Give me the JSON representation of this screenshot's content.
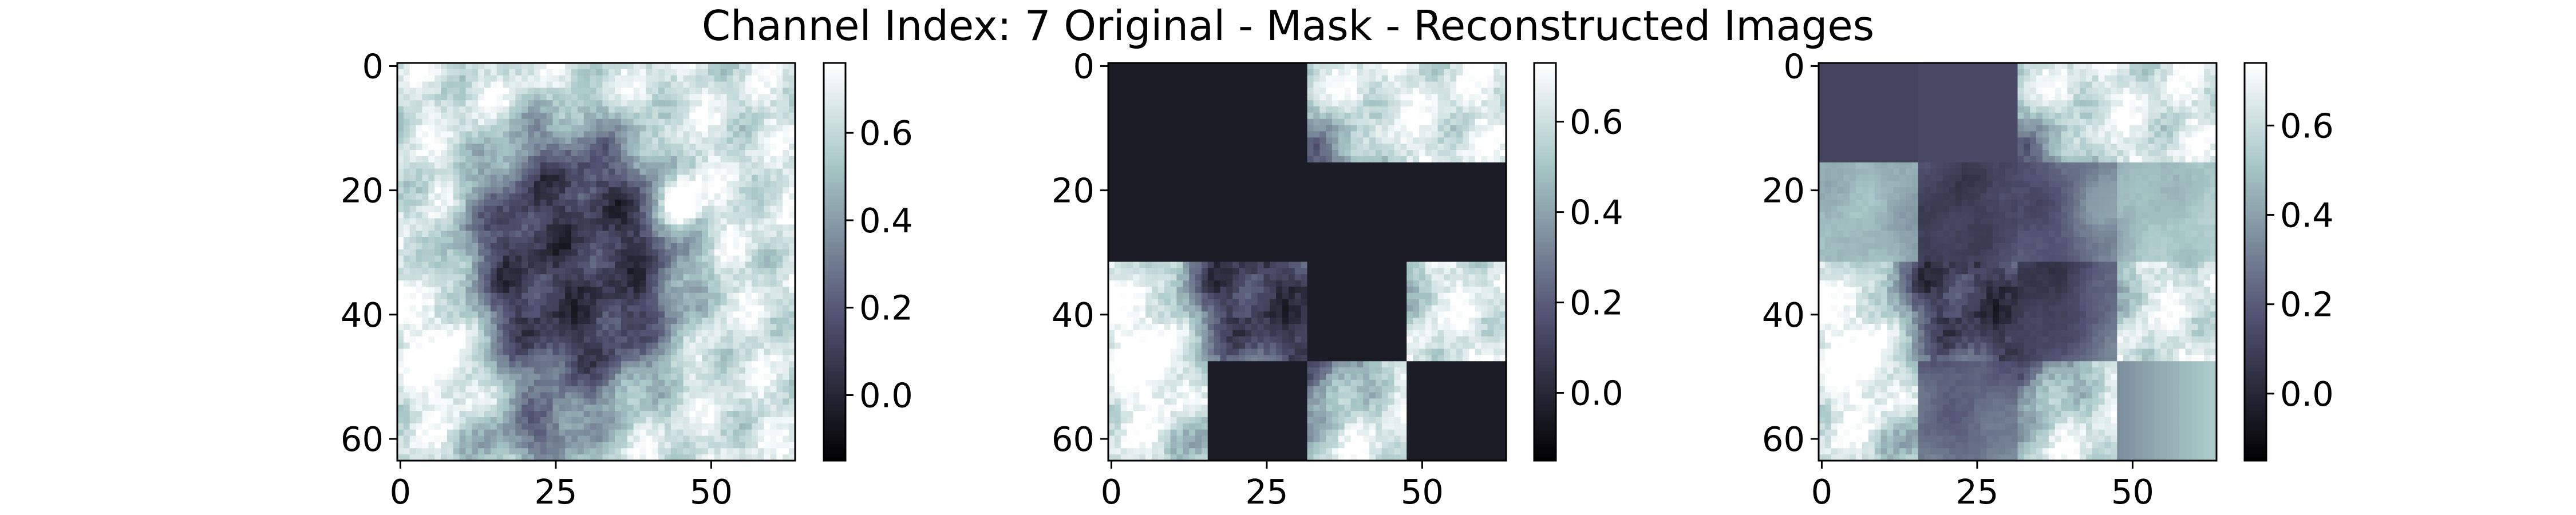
{
  "figure": {
    "title": "Channel Index: 7 Original - Mask - Reconstructed Images",
    "colormap": "bone",
    "colors": {
      "cmap_dark": "#000000",
      "cmap_mid": "#536b7f",
      "cmap_light": "#ffffff",
      "mask_fill": "#22222c"
    }
  },
  "chart_data": [
    {
      "type": "heatmap",
      "panel": "Original",
      "title": "",
      "xlabel": "",
      "ylabel": "",
      "xlim": [
        -0.5,
        63.5
      ],
      "ylim": [
        63.5,
        -0.5
      ],
      "x_ticks": [
        "0",
        "25",
        "50"
      ],
      "x_tick_values": [
        0,
        25,
        50
      ],
      "y_ticks": [
        "0",
        "20",
        "40",
        "60"
      ],
      "y_tick_values": [
        0,
        20,
        40,
        60
      ],
      "grid_size": [
        64,
        64
      ],
      "value_range": [
        -0.15,
        0.76
      ],
      "colorbar": {
        "ticks": [
          "0.0",
          "0.2",
          "0.4",
          "0.6"
        ],
        "tick_values": [
          0.0,
          0.2,
          0.4,
          0.6
        ],
        "range": [
          -0.15,
          0.76
        ]
      }
    },
    {
      "type": "heatmap",
      "panel": "Mask",
      "title": "",
      "xlabel": "",
      "ylabel": "",
      "xlim": [
        -0.5,
        63.5
      ],
      "ylim": [
        63.5,
        -0.5
      ],
      "x_ticks": [
        "0",
        "25",
        "50"
      ],
      "x_tick_values": [
        0,
        25,
        50
      ],
      "y_ticks": [
        "0",
        "20",
        "40",
        "60"
      ],
      "y_tick_values": [
        0,
        20,
        40,
        60
      ],
      "grid_size": [
        64,
        64
      ],
      "patch_size": 16,
      "masked_patches": [
        [
          0,
          0
        ],
        [
          0,
          1
        ],
        [
          1,
          0
        ],
        [
          1,
          1
        ],
        [
          1,
          2
        ],
        [
          1,
          3
        ],
        [
          2,
          2
        ],
        [
          3,
          1
        ],
        [
          3,
          3
        ]
      ],
      "mask_value": -0.04,
      "value_range": [
        -0.15,
        0.73
      ],
      "colorbar": {
        "ticks": [
          "0.0",
          "0.2",
          "0.4",
          "0.6"
        ],
        "tick_values": [
          0.0,
          0.2,
          0.4,
          0.6
        ],
        "range": [
          -0.15,
          0.73
        ]
      }
    },
    {
      "type": "heatmap",
      "panel": "Reconstructed",
      "title": "",
      "xlabel": "",
      "ylabel": "",
      "xlim": [
        -0.5,
        63.5
      ],
      "ylim": [
        63.5,
        -0.5
      ],
      "x_ticks": [
        "0",
        "25",
        "50"
      ],
      "x_tick_values": [
        0,
        25,
        50
      ],
      "y_ticks": [
        "0",
        "20",
        "40",
        "60"
      ],
      "y_tick_values": [
        0,
        20,
        40,
        60
      ],
      "grid_size": [
        64,
        64
      ],
      "value_range": [
        -0.15,
        0.74
      ],
      "colorbar": {
        "ticks": [
          "0.0",
          "0.2",
          "0.4",
          "0.6"
        ],
        "tick_values": [
          0.0,
          0.2,
          0.4,
          0.6
        ],
        "range": [
          -0.15,
          0.74
        ]
      }
    }
  ]
}
